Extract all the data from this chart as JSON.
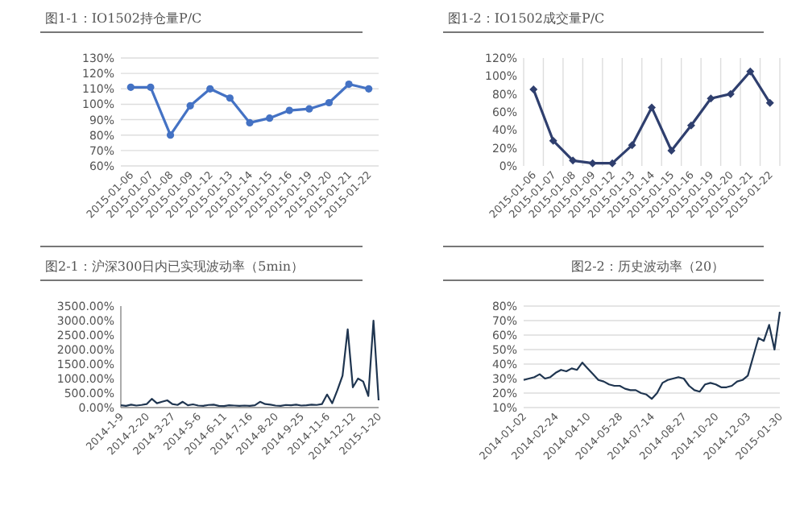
{
  "chart_data": [
    {
      "type": "line",
      "title": "图1-1：IO1502持仓量P/C",
      "categories": [
        "2015-01-06",
        "2015-01-07",
        "2015-01-08",
        "2015-01-09",
        "2015-01-12",
        "2015-01-13",
        "2015-01-14",
        "2015-01-15",
        "2015-01-16",
        "2015-01-19",
        "2015-01-20",
        "2015-01-21",
        "2015-01-22"
      ],
      "series": [
        {
          "color": "#4472c4",
          "values": [
            111,
            111,
            80,
            99,
            110,
            104,
            88,
            91,
            96,
            97,
            101,
            113,
            110
          ]
        }
      ],
      "ylim": [
        60,
        130
      ],
      "yticks": [
        {
          "value": 60,
          "label": "60%"
        },
        {
          "value": 70,
          "label": "70%"
        },
        {
          "value": 80,
          "label": "80%"
        },
        {
          "value": 90,
          "label": "90%"
        },
        {
          "value": 100,
          "label": "100%"
        },
        {
          "value": 110,
          "label": "110%"
        },
        {
          "value": 120,
          "label": "120%"
        },
        {
          "value": 130,
          "label": "130%"
        }
      ],
      "grid": "y",
      "marker": "circle"
    },
    {
      "type": "line",
      "title": "图1-2：IO1502成交量P/C",
      "categories": [
        "2015-01-06",
        "2015-01-07",
        "2015-01-08",
        "2015-01-09",
        "2015-01-12",
        "2015-01-13",
        "2015-01-14",
        "2015-01-15",
        "2015-01-16",
        "2015-01-19",
        "2015-01-20",
        "2015-01-21",
        "2015-01-22"
      ],
      "series": [
        {
          "color": "#2f3f6e",
          "values": [
            85,
            28,
            6,
            3,
            3,
            23,
            65,
            17,
            45,
            75,
            80,
            105,
            70
          ]
        }
      ],
      "ylim": [
        0,
        120
      ],
      "yticks": [
        {
          "value": 0,
          "label": "0%"
        },
        {
          "value": 20,
          "label": "20%"
        },
        {
          "value": 40,
          "label": "40%"
        },
        {
          "value": 60,
          "label": "60%"
        },
        {
          "value": 80,
          "label": "80%"
        },
        {
          "value": 100,
          "label": "100%"
        },
        {
          "value": 120,
          "label": "120%"
        }
      ],
      "grid": "x",
      "marker": "diamond"
    },
    {
      "type": "line",
      "title": "图2-1：沪深300日内已实现波动率（5min）",
      "categories": [
        "2014-1-9",
        null,
        null,
        null,
        null,
        "2014-2-20",
        null,
        null,
        null,
        null,
        "2014-3-27",
        null,
        null,
        null,
        null,
        "2014-5-6",
        null,
        null,
        null,
        null,
        "2014-6-11",
        null,
        null,
        null,
        null,
        "2014-7-16",
        null,
        null,
        null,
        null,
        "2014-8-20",
        null,
        null,
        null,
        null,
        "2014-9-25",
        null,
        null,
        null,
        null,
        "2014-11-6",
        null,
        null,
        null,
        null,
        "2014-12-12",
        null,
        null,
        null,
        null,
        "2015-1-20"
      ],
      "series": [
        {
          "color": "#1f3550",
          "values": [
            80,
            60,
            100,
            70,
            90,
            120,
            300,
            150,
            200,
            250,
            120,
            90,
            200,
            80,
            110,
            70,
            60,
            90,
            100,
            60,
            50,
            80,
            70,
            60,
            70,
            60,
            80,
            200,
            120,
            100,
            70,
            60,
            90,
            80,
            100,
            70,
            80,
            100,
            90,
            120,
            450,
            150,
            600,
            1100,
            2700,
            700,
            1000,
            900,
            400,
            3000,
            250
          ]
        }
      ],
      "ylim": [
        0,
        3500
      ],
      "yticks": [
        {
          "value": 0,
          "label": "0.00%"
        },
        {
          "value": 500,
          "label": "500.00%"
        },
        {
          "value": 1000,
          "label": "1000.00%"
        },
        {
          "value": 1500,
          "label": "1500.00%"
        },
        {
          "value": 2000,
          "label": "2000.00%"
        },
        {
          "value": 2500,
          "label": "2500.00%"
        },
        {
          "value": 3000,
          "label": "3000.00%"
        },
        {
          "value": 3500,
          "label": "3500.00%"
        }
      ]
    },
    {
      "type": "line",
      "title": "图2-2：历史波动率（20）",
      "categories": [
        "2014-01-02",
        null,
        null,
        null,
        null,
        null,
        "2014-02-24",
        null,
        null,
        null,
        null,
        null,
        "2014-04-10",
        null,
        null,
        null,
        null,
        null,
        "2014-05-28",
        null,
        null,
        null,
        null,
        null,
        "2014-07-14",
        null,
        null,
        null,
        null,
        null,
        "2014-08-27",
        null,
        null,
        null,
        null,
        null,
        "2014-10-20",
        null,
        null,
        null,
        null,
        null,
        "2014-12-03",
        null,
        null,
        null,
        null,
        null,
        "2015-01-30"
      ],
      "series": [
        {
          "color": "#1f3550",
          "values": [
            29,
            30,
            31,
            33,
            30,
            31,
            34,
            36,
            35,
            37,
            36,
            41,
            37,
            33,
            29,
            28,
            26,
            25,
            25,
            23,
            22,
            22,
            20,
            19,
            16,
            20,
            27,
            29,
            30,
            31,
            30,
            25,
            22,
            21,
            26,
            27,
            26,
            24,
            24,
            25,
            28,
            29,
            32,
            45,
            58,
            56,
            67,
            50,
            76
          ]
        }
      ],
      "ylim": [
        10,
        80
      ],
      "yticks": [
        {
          "value": 10,
          "label": "10%"
        },
        {
          "value": 20,
          "label": "20%"
        },
        {
          "value": 30,
          "label": "30%"
        },
        {
          "value": 40,
          "label": "40%"
        },
        {
          "value": 50,
          "label": "50%"
        },
        {
          "value": 60,
          "label": "60%"
        },
        {
          "value": 70,
          "label": "70%"
        },
        {
          "value": 80,
          "label": "80%"
        }
      ],
      "grid": "y"
    }
  ]
}
